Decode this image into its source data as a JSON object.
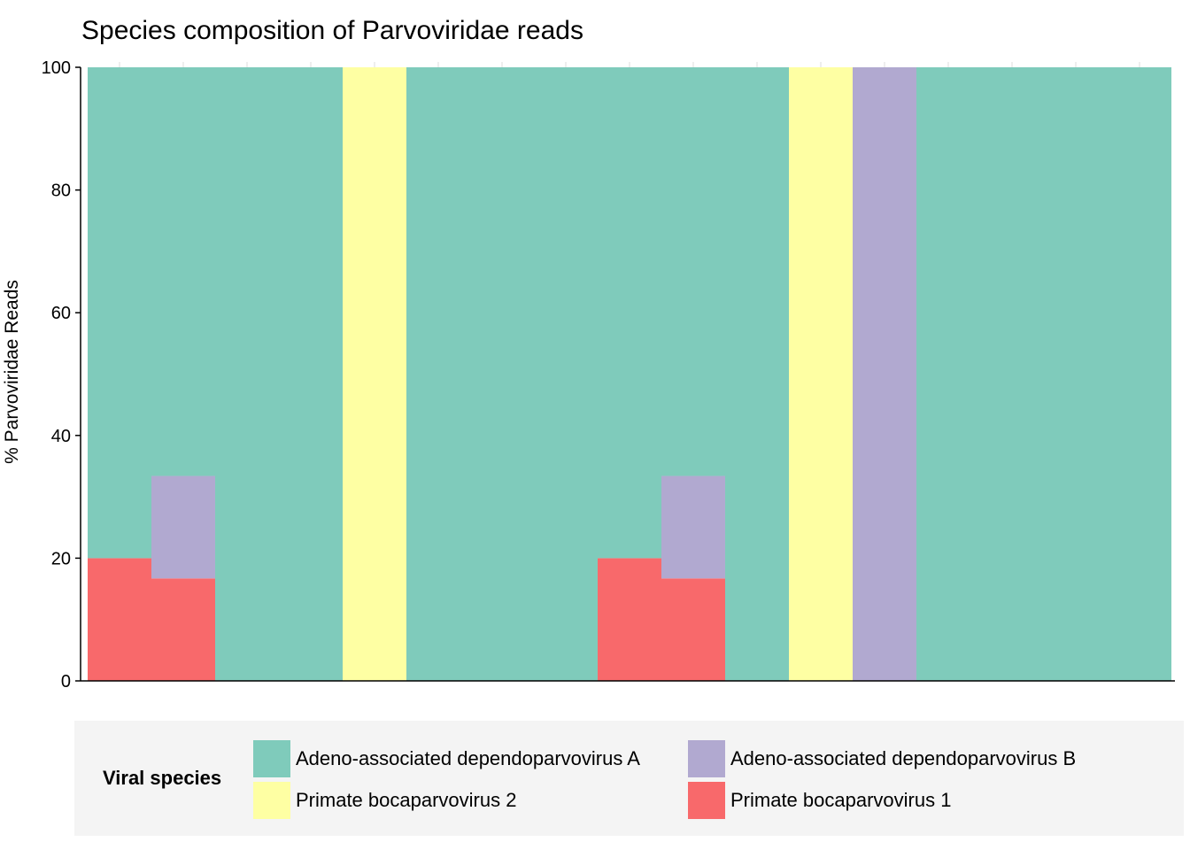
{
  "chart_data": {
    "type": "bar",
    "stacked": true,
    "title": "Species composition of Parvoviridae reads",
    "xlabel": "",
    "ylabel": "% Parvoviridae Reads",
    "ylim": [
      0,
      100
    ],
    "yticks": [
      0,
      20,
      40,
      60,
      80,
      100
    ],
    "bar_count": 17,
    "legend": {
      "title": "Viral species",
      "placement": "bottom"
    },
    "series": [
      {
        "name": "Primate bocaparvovirus 1",
        "color": "#f8696b",
        "values": [
          20,
          16.7,
          0,
          0,
          0,
          0,
          0,
          0,
          20,
          16.7,
          0,
          0,
          0,
          0,
          0,
          0,
          0
        ]
      },
      {
        "name": "Adeno-associated dependoparvovirus B",
        "color": "#b1a9d0",
        "values": [
          0,
          16.7,
          0,
          0,
          0,
          0,
          0,
          0,
          0,
          16.7,
          0,
          0,
          100,
          0,
          0,
          0,
          0
        ]
      },
      {
        "name": "Primate bocaparvovirus 2",
        "color": "#feffa3",
        "values": [
          0,
          0,
          0,
          0,
          100,
          0,
          0,
          0,
          0,
          0,
          0,
          100,
          0,
          0,
          0,
          0,
          0
        ]
      },
      {
        "name": "Adeno-associated dependoparvovirus A",
        "color": "#7fcbbb",
        "values": [
          80,
          66.6,
          100,
          100,
          0,
          100,
          100,
          100,
          80,
          66.6,
          100,
          0,
          0,
          100,
          100,
          100,
          100
        ]
      }
    ],
    "legend_order": [
      "Adeno-associated dependoparvovirus A",
      "Adeno-associated dependoparvovirus B",
      "Primate bocaparvovirus 2",
      "Primate bocaparvovirus 1"
    ]
  }
}
